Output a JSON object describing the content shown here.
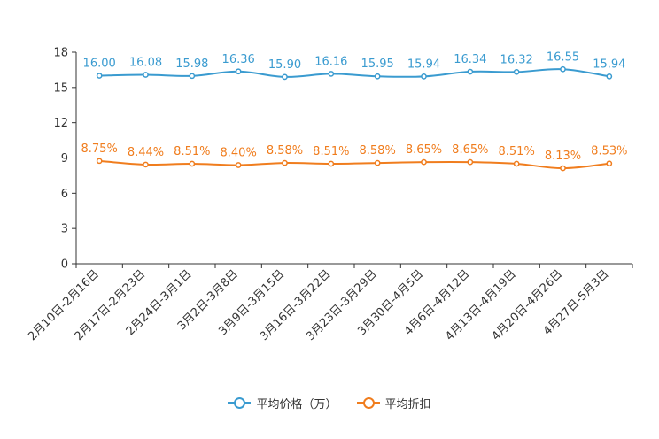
{
  "chart_data": {
    "type": "line",
    "categories": [
      "2月10日-2月16日",
      "2月17日-2月23日",
      "2月24日-3月1日",
      "3月2日-3月8日",
      "3月9日-3月15日",
      "3月16日-3月22日",
      "3月23日-3月29日",
      "3月30日-4月5日",
      "4月6日-4月12日",
      "4月13日-4月19日",
      "4月20日-4月26日",
      "4月27日-5月3日"
    ],
    "ylim": [
      0,
      18
    ],
    "yticks": [
      0,
      3,
      6,
      9,
      12,
      15,
      18
    ],
    "series": [
      {
        "name": "平均价格（万）",
        "color": "#3a9bd0",
        "values": [
          16.0,
          16.08,
          15.98,
          16.36,
          15.9,
          16.16,
          15.95,
          15.94,
          16.34,
          16.32,
          16.55,
          15.94
        ],
        "labels": [
          "16.00",
          "16.08",
          "15.98",
          "16.36",
          "15.90",
          "16.16",
          "15.95",
          "15.94",
          "16.34",
          "16.32",
          "16.55",
          "15.94"
        ]
      },
      {
        "name": "平均折扣",
        "color": "#f07d1e",
        "values": [
          8.75,
          8.44,
          8.51,
          8.4,
          8.58,
          8.51,
          8.58,
          8.65,
          8.65,
          8.51,
          8.13,
          8.53
        ],
        "labels": [
          "8.75%",
          "8.44%",
          "8.51%",
          "8.40%",
          "8.58%",
          "8.51%",
          "8.58%",
          "8.65%",
          "8.65%",
          "8.51%",
          "8.13%",
          "8.53%"
        ]
      }
    ]
  }
}
